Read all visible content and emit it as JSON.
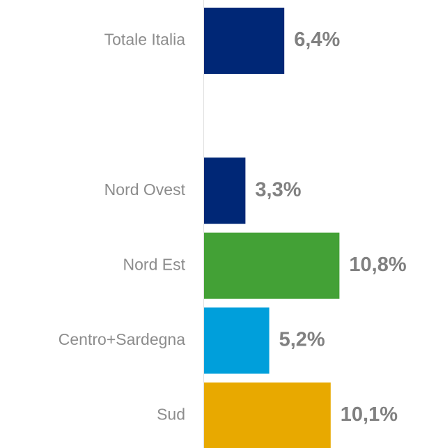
{
  "chart_data": {
    "type": "barh",
    "categories": [
      "Totale Italia",
      null,
      "Nord Ovest",
      "Nord Est",
      "Centro+Sardegna",
      "Sud"
    ],
    "values": [
      6.4,
      null,
      3.3,
      10.8,
      5.2,
      10.1
    ],
    "value_labels": [
      "6,4%",
      null,
      "3,3%",
      "10,8%",
      "5,2%",
      "10,1%"
    ],
    "colors": [
      "#002776",
      null,
      "#002776",
      "#43a136",
      "#009fdb",
      "#e8a900"
    ]
  }
}
